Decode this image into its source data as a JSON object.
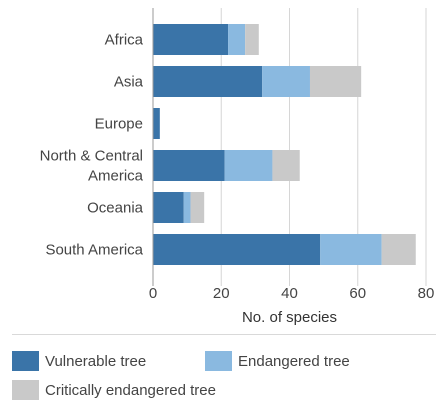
{
  "chart_data": {
    "type": "bar",
    "orientation": "horizontal",
    "stacked": true,
    "categories": [
      [
        "Africa"
      ],
      [
        "Asia"
      ],
      [
        "Europe"
      ],
      [
        "North & Central",
        "America"
      ],
      [
        "Oceania"
      ],
      [
        "South America"
      ]
    ],
    "series": [
      {
        "name": "Vulnerable tree",
        "color": "#3a74a8",
        "values": [
          22,
          32,
          2,
          21,
          9,
          49
        ]
      },
      {
        "name": "Endangered tree",
        "color": "#8ab9e0",
        "values": [
          5,
          14,
          0,
          14,
          2,
          18
        ]
      },
      {
        "name": "Critically endangered tree",
        "color": "#c9c9c9",
        "values": [
          4,
          15,
          0,
          8,
          4,
          10
        ]
      }
    ],
    "xlabel": "No. of species",
    "ylabel": "",
    "title": "",
    "xlim": [
      0,
      80
    ],
    "xticks": [
      "0",
      "20",
      "40",
      "60",
      "80"
    ],
    "grid": true,
    "legend_position": "bottom"
  }
}
